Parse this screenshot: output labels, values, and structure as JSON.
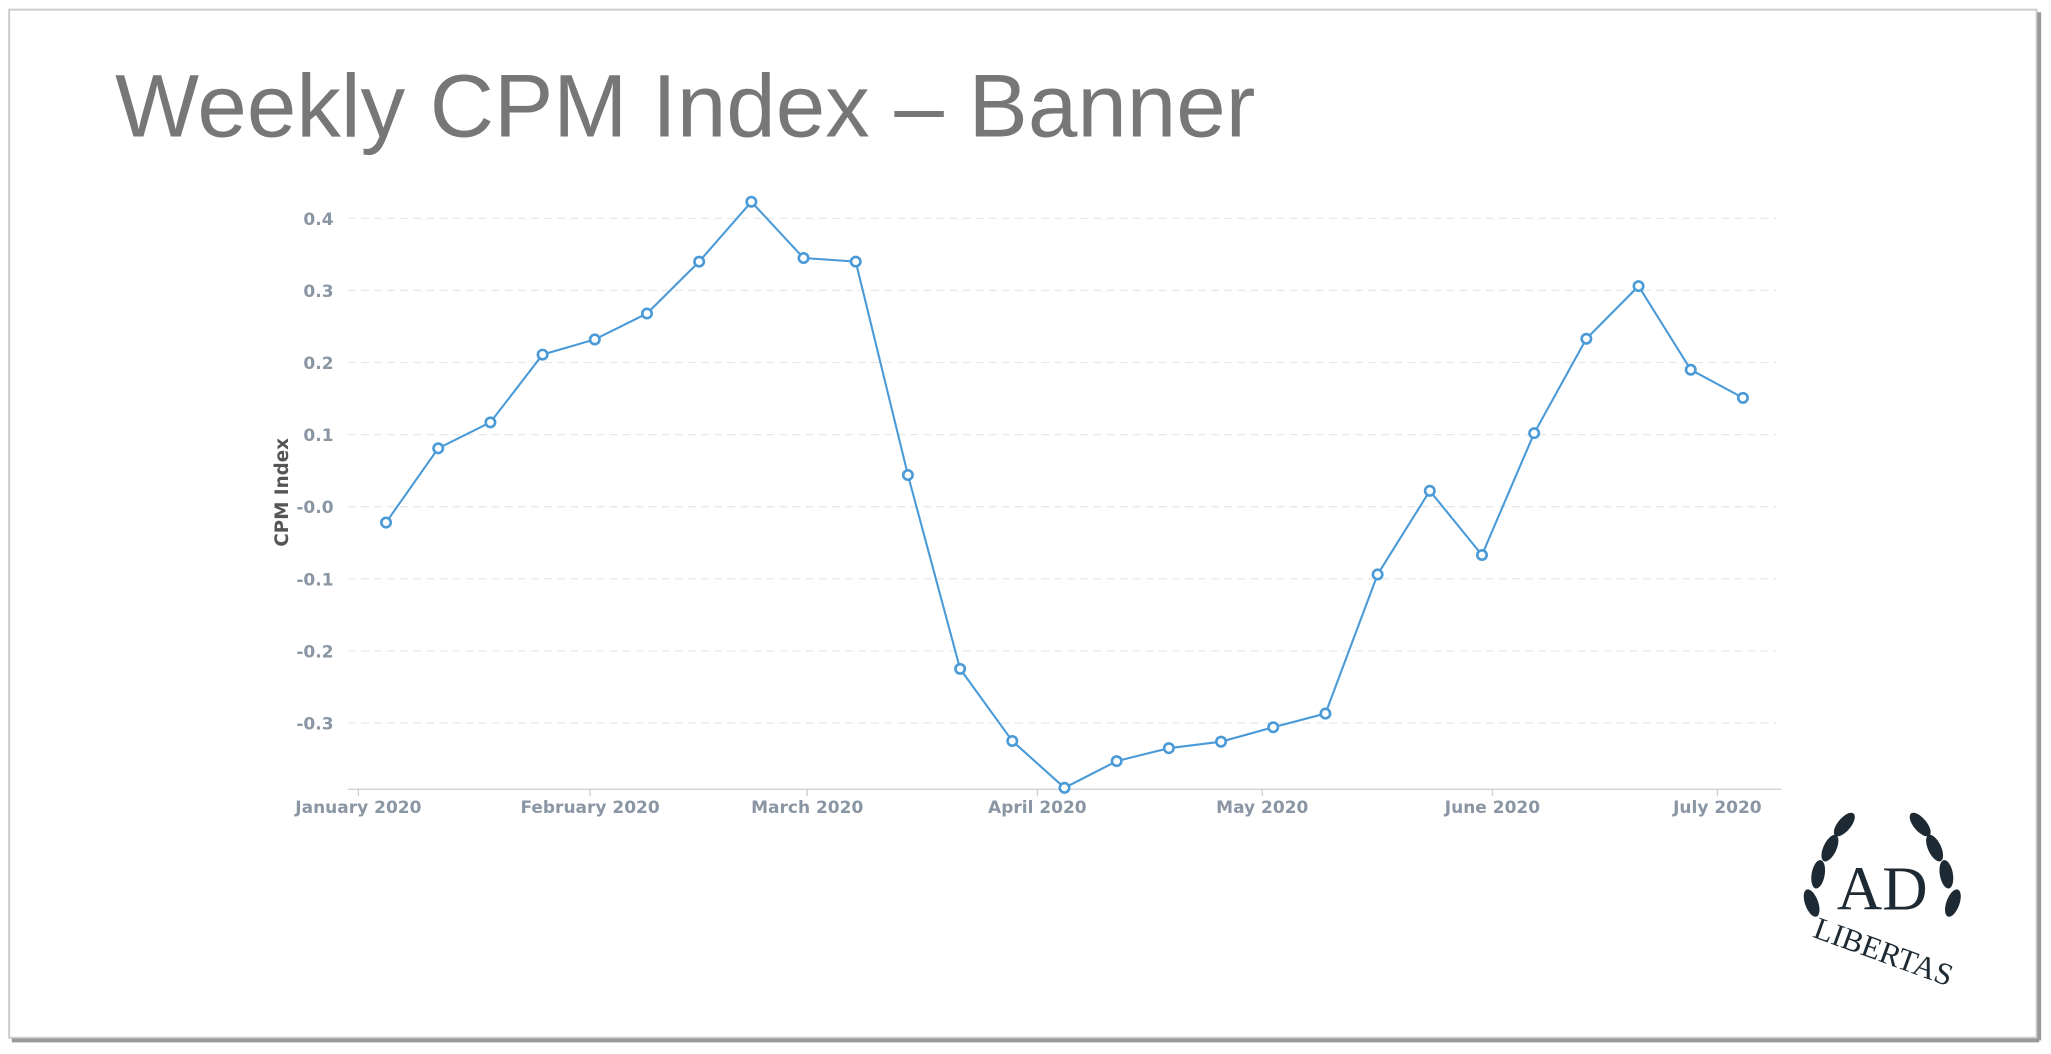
{
  "chart_data": {
    "type": "line",
    "title": "Weekly CPM Index – Banner",
    "y_label": "CPM Index",
    "series": [
      {
        "name": "CPM Index",
        "color": "#4a9ad8",
        "values": [
          -0.022,
          0.081,
          0.117,
          0.211,
          0.232,
          0.268,
          0.34,
          0.423,
          0.345,
          0.34,
          0.044,
          -0.225,
          -0.325,
          -0.39,
          -0.353,
          -0.335,
          -0.326,
          -0.306,
          -0.287,
          -0.094,
          0.022,
          -0.067,
          0.102,
          0.233,
          0.306,
          0.19,
          0.151
        ]
      }
    ],
    "xlim": [
      -0.73,
      26.74
    ],
    "xticks": [
      {
        "value": -0.53,
        "label": "January 2020"
      },
      {
        "value": 3.91,
        "label": "February 2020"
      },
      {
        "value": 8.07,
        "label": "March 2020"
      },
      {
        "value": 12.48,
        "label": "April 2020"
      },
      {
        "value": 16.79,
        "label": "May 2020"
      },
      {
        "value": 21.2,
        "label": "June 2020"
      },
      {
        "value": 25.51,
        "label": "July 2020"
      }
    ],
    "ylim": [
      -0.392,
      0.43
    ],
    "yticks": [
      -0.3,
      -0.2,
      -0.1,
      {
        "value": 0,
        "label": "-0.0"
      },
      0.1,
      0.2,
      0.3,
      0.4
    ],
    "grid": true
  },
  "logo": {
    "mark": "AD",
    "text": "LIBERTAS"
  }
}
